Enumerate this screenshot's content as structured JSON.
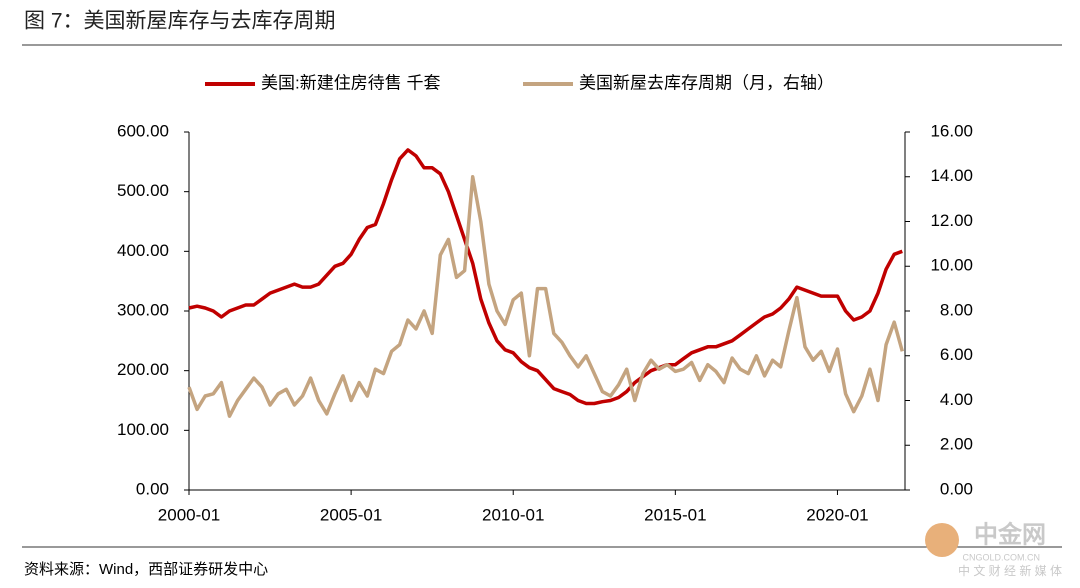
{
  "chart_data": {
    "type": "line",
    "title": "图 7：美国新屋库存与去库存周期",
    "source": "资料来源：Wind，西部证券研发中心",
    "watermark": {
      "name": "中金网",
      "site": "CNGOLD.COM.CN",
      "slogan": "中 文 财 经 新 媒 体"
    },
    "x": [
      "2000-01",
      "2000-04",
      "2000-07",
      "2000-10",
      "2001-01",
      "2001-04",
      "2001-07",
      "2001-10",
      "2002-01",
      "2002-04",
      "2002-07",
      "2002-10",
      "2003-01",
      "2003-04",
      "2003-07",
      "2003-10",
      "2004-01",
      "2004-04",
      "2004-07",
      "2004-10",
      "2005-01",
      "2005-04",
      "2005-07",
      "2005-10",
      "2006-01",
      "2006-04",
      "2006-07",
      "2006-10",
      "2007-01",
      "2007-04",
      "2007-07",
      "2007-10",
      "2008-01",
      "2008-04",
      "2008-07",
      "2008-10",
      "2009-01",
      "2009-04",
      "2009-07",
      "2009-10",
      "2010-01",
      "2010-04",
      "2010-07",
      "2010-10",
      "2011-01",
      "2011-04",
      "2011-07",
      "2011-10",
      "2012-01",
      "2012-04",
      "2012-07",
      "2012-10",
      "2013-01",
      "2013-04",
      "2013-07",
      "2013-10",
      "2014-01",
      "2014-04",
      "2014-07",
      "2014-10",
      "2015-01",
      "2015-04",
      "2015-07",
      "2015-10",
      "2016-01",
      "2016-04",
      "2016-07",
      "2016-10",
      "2017-01",
      "2017-04",
      "2017-07",
      "2017-10",
      "2018-01",
      "2018-04",
      "2018-07",
      "2018-10",
      "2019-01",
      "2019-04",
      "2019-07",
      "2019-10",
      "2020-01",
      "2020-04",
      "2020-07",
      "2020-10",
      "2021-01",
      "2021-04",
      "2021-07",
      "2021-10",
      "2022-01"
    ],
    "xlim": [
      "2000-01",
      "2022-02"
    ],
    "xticks": [
      "2000-01",
      "2005-01",
      "2010-01",
      "2015-01",
      "2020-01"
    ],
    "series": [
      {
        "name": "美国:新建住房待售 千套",
        "color": "#c00000",
        "values": [
          305,
          308,
          305,
          300,
          290,
          300,
          305,
          310,
          310,
          320,
          330,
          335,
          340,
          345,
          340,
          340,
          345,
          360,
          375,
          380,
          395,
          420,
          440,
          445,
          480,
          520,
          555,
          570,
          560,
          540,
          540,
          530,
          500,
          460,
          420,
          380,
          320,
          280,
          250,
          235,
          230,
          215,
          205,
          200,
          185,
          170,
          165,
          160,
          150,
          145,
          145,
          148,
          150,
          155,
          165,
          180,
          190,
          200,
          205,
          210,
          210,
          220,
          230,
          235,
          240,
          240,
          245,
          250,
          260,
          270,
          280,
          290,
          295,
          305,
          320,
          340,
          335,
          330,
          325,
          325,
          325,
          300,
          285,
          290,
          300,
          330,
          370,
          395,
          400
        ]
      },
      {
        "name": "美国新屋去库存周期（月，右轴）",
        "color": "#c4a480",
        "axis": "y2",
        "values": [
          4.6,
          3.6,
          4.2,
          4.3,
          4.8,
          3.3,
          4.0,
          4.5,
          5.0,
          4.6,
          3.8,
          4.3,
          4.5,
          3.8,
          4.2,
          5.0,
          4.0,
          3.4,
          4.3,
          5.1,
          4.0,
          4.8,
          4.2,
          5.4,
          5.2,
          6.2,
          6.5,
          7.6,
          7.2,
          8.0,
          7.0,
          10.5,
          11.2,
          9.5,
          9.8,
          14.0,
          12.0,
          9.2,
          8.0,
          7.4,
          8.5,
          8.8,
          6.0,
          9.0,
          9.0,
          7.0,
          6.6,
          6.0,
          5.5,
          6.0,
          5.2,
          4.4,
          4.2,
          4.7,
          5.4,
          4.0,
          5.2,
          5.8,
          5.4,
          5.6,
          5.3,
          5.4,
          5.7,
          4.9,
          5.6,
          5.3,
          4.8,
          5.9,
          5.4,
          5.2,
          6.0,
          5.1,
          5.8,
          5.5,
          7.1,
          8.6,
          6.4,
          5.8,
          6.2,
          5.3,
          6.3,
          4.3,
          3.5,
          4.2,
          5.4,
          4.0,
          6.5,
          7.5,
          6.2
        ]
      }
    ],
    "ylim": [
      0,
      600
    ],
    "yticks": [
      {
        "value": 0,
        "label": "0.00"
      },
      {
        "value": 100,
        "label": "100.00"
      },
      {
        "value": 200,
        "label": "200.00"
      },
      {
        "value": 300,
        "label": "300.00"
      },
      {
        "value": 400,
        "label": "400.00"
      },
      {
        "value": 500,
        "label": "500.00"
      },
      {
        "value": 600,
        "label": "600.00"
      }
    ],
    "y2lim": [
      0,
      16
    ],
    "y2ticks": [
      {
        "value": 0,
        "label": "0.00"
      },
      {
        "value": 2,
        "label": "2.00"
      },
      {
        "value": 4,
        "label": "4.00"
      },
      {
        "value": 6,
        "label": "6.00"
      },
      {
        "value": 8,
        "label": "8.00"
      },
      {
        "value": 10,
        "label": "10.00"
      },
      {
        "value": 12,
        "label": "12.00"
      },
      {
        "value": 14,
        "label": "14.00"
      },
      {
        "value": 16,
        "label": "16.00"
      }
    ],
    "grid": false,
    "legend": "top"
  }
}
